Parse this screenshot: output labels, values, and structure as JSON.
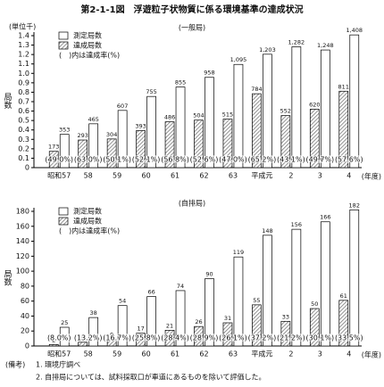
{
  "title": "第2-1-1図　浮遊粒子状物質に係る環境基準の達成状況",
  "chart_data": [
    {
      "type": "bar",
      "panel_label": "(一般局)",
      "y_label": "局数",
      "y_unit": "(単位千)",
      "x_label": "(年度)",
      "legend_note": "(　)内は達成率(%)",
      "categories": [
        "昭和57",
        "58",
        "59",
        "60",
        "61",
        "62",
        "63",
        "平成元",
        "2",
        "3",
        "4"
      ],
      "series": [
        {
          "name": "測定局数",
          "color": "#ffffff",
          "values": [
            0.353,
            0.465,
            0.607,
            0.755,
            0.855,
            0.958,
            1.095,
            1.203,
            1.282,
            1.248,
            1.408
          ],
          "value_labels": [
            "353",
            "465",
            "607",
            "755",
            "855",
            "958",
            "1,095",
            "1,203",
            "1,282",
            "1,248",
            "1,408"
          ]
        },
        {
          "name": "達成局数",
          "color": "#777777",
          "hatch": true,
          "values": [
            0.173,
            0.293,
            0.304,
            0.393,
            0.486,
            0.504,
            0.515,
            0.784,
            0.552,
            0.62,
            0.811
          ],
          "value_labels": [
            "173",
            "293",
            "304",
            "393",
            "486",
            "504",
            "515",
            "784",
            "552",
            "620",
            "811"
          ]
        }
      ],
      "rate_labels": [
        "(49.0%)",
        "(63.0%)",
        "(50.1%)",
        "(52.1%)",
        "(56.8%)",
        "(52.6%)",
        "(47.0%)",
        "(65.2%)",
        "(43.1%)",
        "(49.7%)",
        "(57.6%)"
      ],
      "ylim": [
        0,
        1.4
      ],
      "yticks": [
        0,
        0.1,
        0.2,
        0.3,
        0.4,
        0.5,
        0.6,
        0.7,
        0.8,
        0.9,
        {
          "value": 1,
          "label": "1.0"
        },
        1.1,
        1.2,
        1.3,
        1.4
      ]
    },
    {
      "type": "bar",
      "panel_label": "(自排局)",
      "y_label": "局数",
      "x_label": "(年度)",
      "legend_note": "(　)内は達成率(%)",
      "categories": [
        "昭和57",
        "58",
        "59",
        "60",
        "61",
        "62",
        "63",
        "平成元",
        "2",
        "3",
        "4"
      ],
      "series": [
        {
          "name": "測定局数",
          "color": "#ffffff",
          "values": [
            25,
            38,
            54,
            66,
            74,
            90,
            119,
            148,
            156,
            166,
            182
          ]
        },
        {
          "name": "達成局数",
          "color": "#777777",
          "hatch": true,
          "values": [
            2,
            5,
            9,
            17,
            21,
            26,
            31,
            55,
            33,
            50,
            61
          ]
        }
      ],
      "rate_labels": [
        "(8.0%)",
        "(13.2%)",
        "(16.7%)",
        "(25.8%)",
        "(28.4%)",
        "(28.9%)",
        "(26.1%)",
        "(37.2%)",
        "(21.2%)",
        "(30.1%)",
        "(33.5%)"
      ],
      "ylim": [
        0,
        180
      ],
      "yticks": [
        0,
        20,
        40,
        60,
        80,
        100,
        120,
        140,
        160,
        180
      ]
    }
  ],
  "notes": {
    "head": "(備考)",
    "items": [
      "1. 環境庁調べ",
      "2. 自排局については、試料採取口が車道にあるものを除いて評価した。"
    ]
  }
}
